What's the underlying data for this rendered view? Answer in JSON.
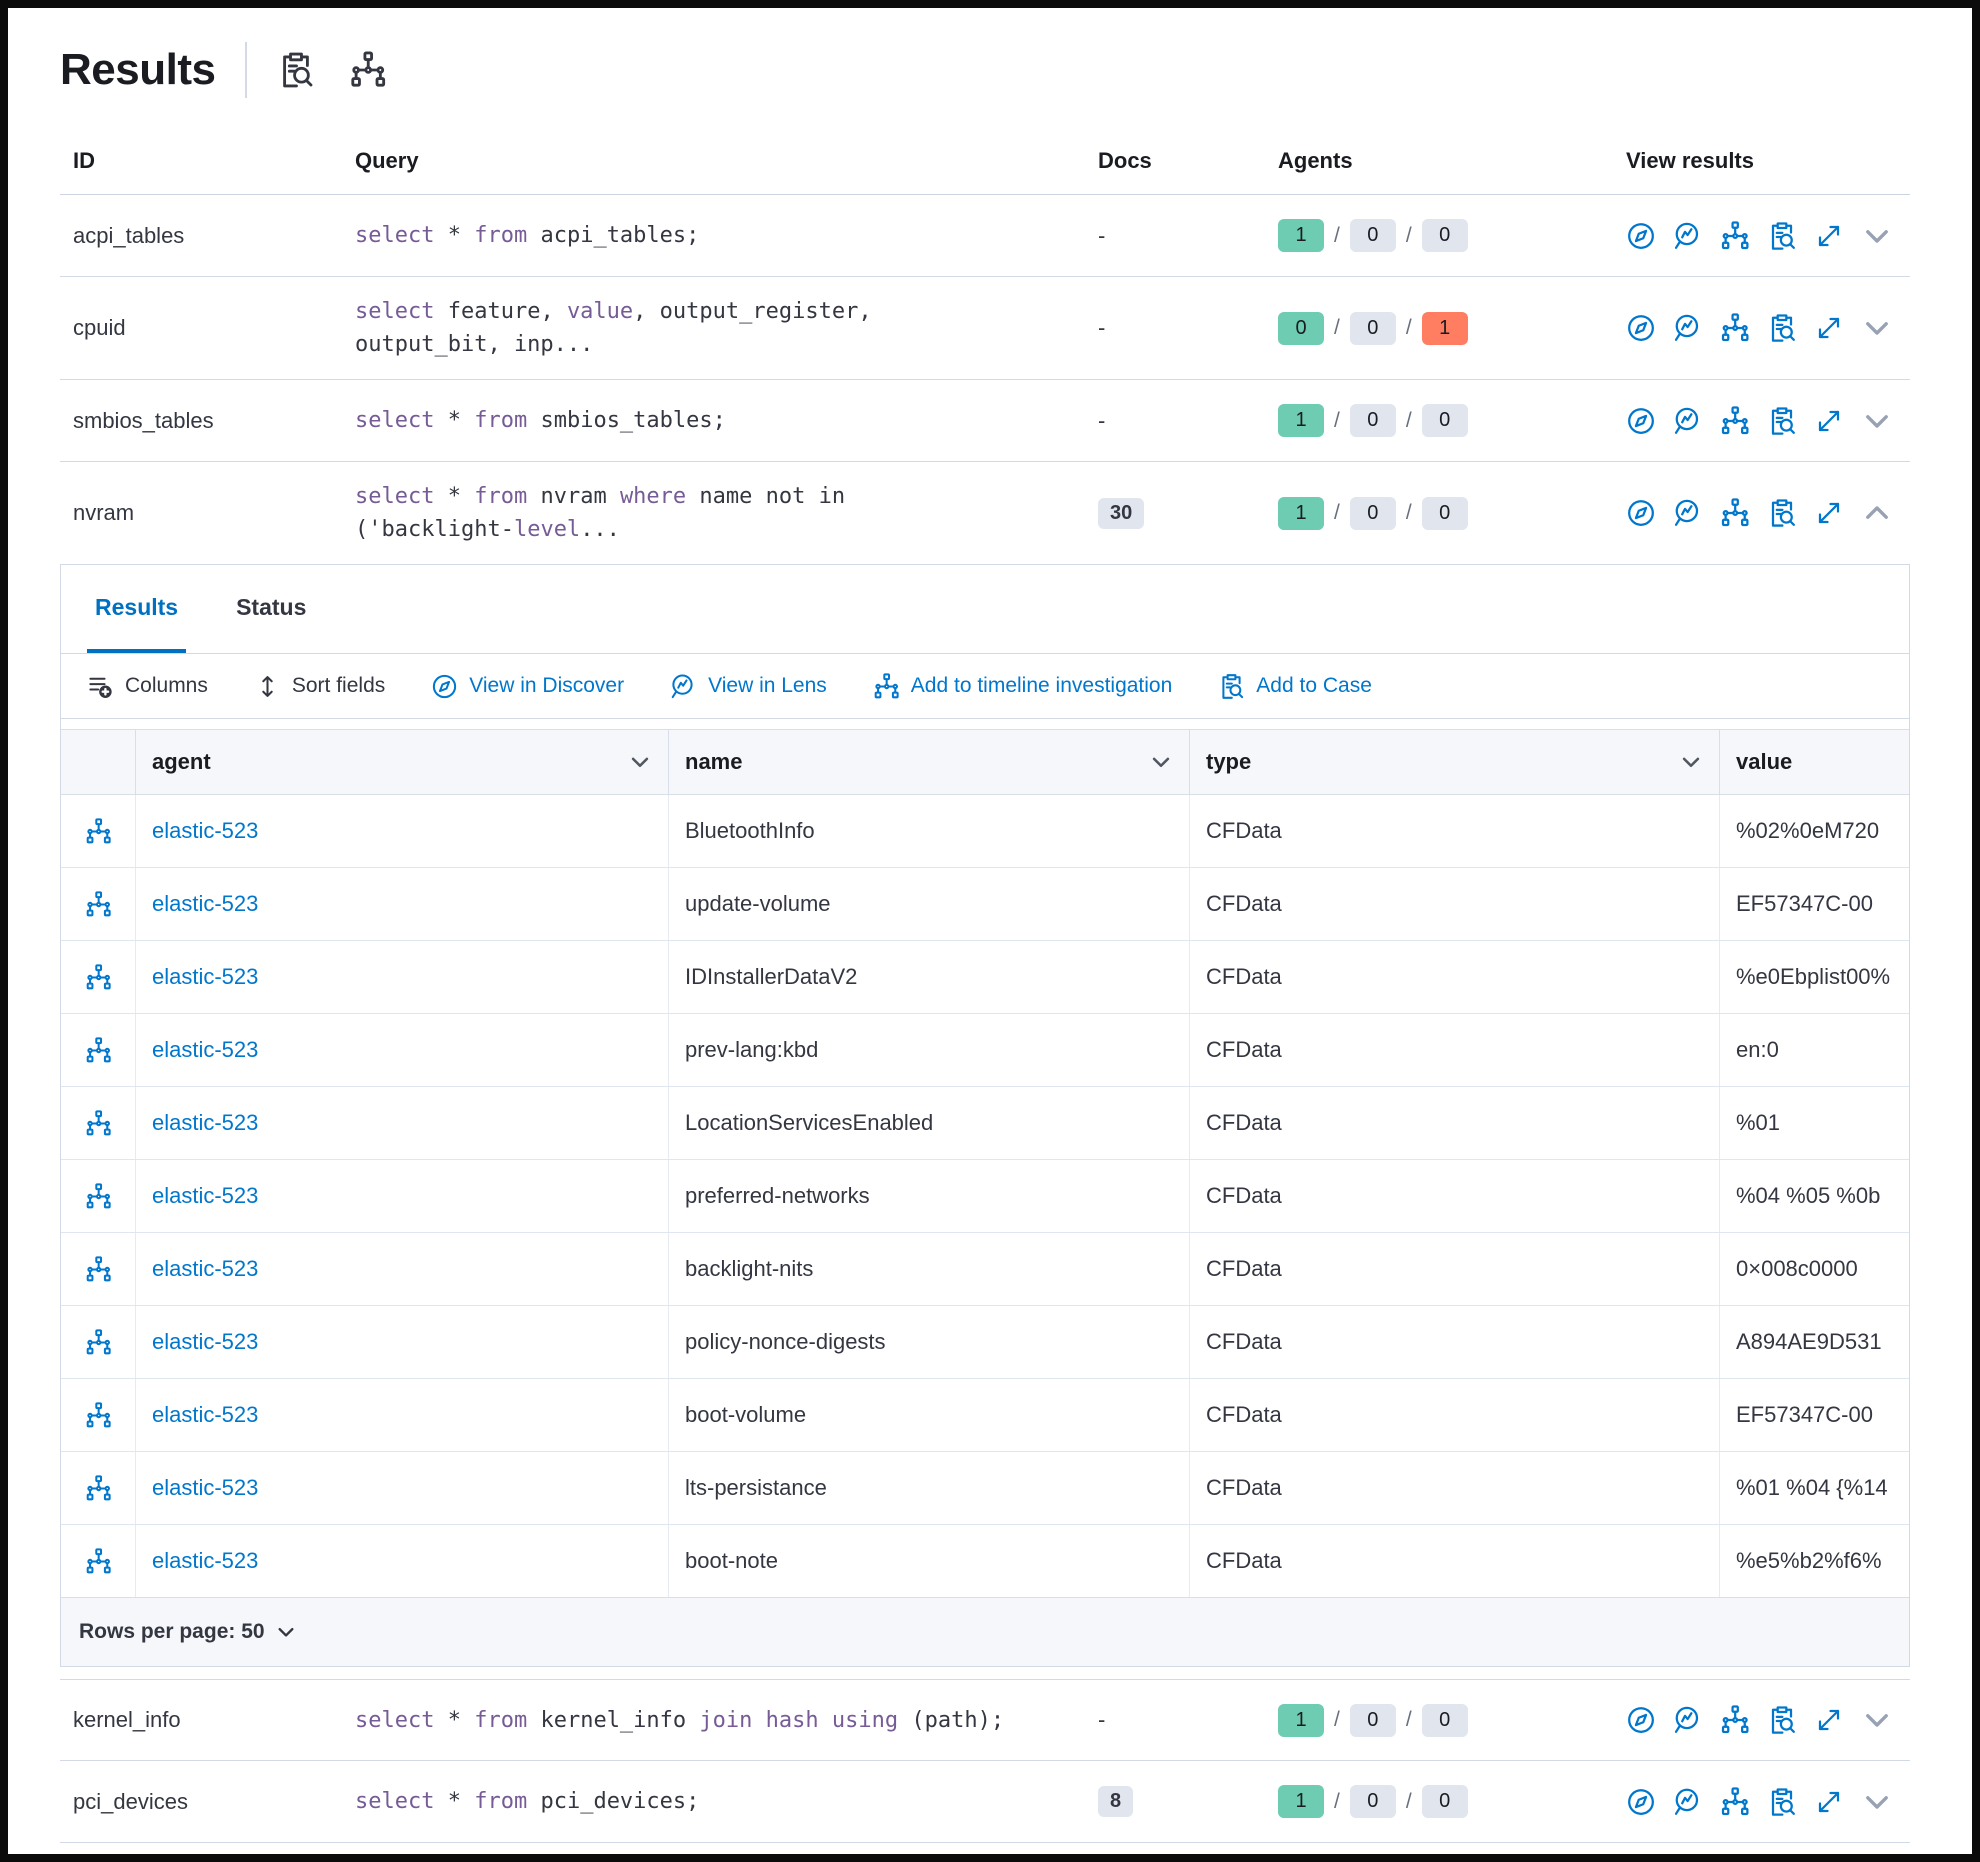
{
  "page": {
    "title": "Results"
  },
  "header": {
    "icons": [
      "inspect-icon",
      "timeline-icon"
    ]
  },
  "colors": {
    "accent_blue": "#0077CC",
    "active_tab_blue": "#0071C2",
    "keyword_purple": "#765B96",
    "success_green": "#6DCCB1",
    "danger_red": "#FF7E62",
    "neutral_badge_gray": "#E0E5EE"
  },
  "results_table": {
    "columns": [
      "ID",
      "Query",
      "Docs",
      "Agents",
      "View results"
    ],
    "rows": [
      {
        "id": "acpi_tables",
        "query_lines": [
          [
            [
              "select",
              1
            ],
            [
              " * ",
              0
            ],
            [
              "from",
              1
            ],
            [
              " acpi_tables;",
              0
            ]
          ]
        ],
        "docs": "-",
        "docs_is_badge": false,
        "agents": [
          [
            "1",
            "s"
          ],
          [
            "0",
            "n"
          ],
          [
            "0",
            "n"
          ]
        ],
        "expanded": false
      },
      {
        "id": "cpuid",
        "query_lines": [
          [
            [
              "select",
              1
            ],
            [
              " feature, ",
              0
            ],
            [
              "value",
              1
            ],
            [
              ", output_register,",
              0
            ]
          ],
          [
            [
              "output_bit, inp...",
              0
            ]
          ]
        ],
        "docs": "-",
        "docs_is_badge": false,
        "agents": [
          [
            "0",
            "s"
          ],
          [
            "0",
            "n"
          ],
          [
            "1",
            "d"
          ]
        ],
        "expanded": false
      },
      {
        "id": "smbios_tables",
        "query_lines": [
          [
            [
              "select",
              1
            ],
            [
              " * ",
              0
            ],
            [
              "from",
              1
            ],
            [
              " smbios_tables;",
              0
            ]
          ]
        ],
        "docs": "-",
        "docs_is_badge": false,
        "agents": [
          [
            "1",
            "s"
          ],
          [
            "0",
            "n"
          ],
          [
            "0",
            "n"
          ]
        ],
        "expanded": false
      },
      {
        "id": "nvram",
        "query_lines": [
          [
            [
              "select",
              1
            ],
            [
              " * ",
              0
            ],
            [
              "from",
              1
            ],
            [
              " nvram ",
              0
            ],
            [
              "where",
              1
            ],
            [
              " name not in",
              0
            ]
          ],
          [
            [
              "('backlight-",
              0
            ],
            [
              "level",
              1
            ],
            [
              "...",
              0
            ]
          ]
        ],
        "docs": "30",
        "docs_is_badge": true,
        "agents": [
          [
            "1",
            "s"
          ],
          [
            "0",
            "n"
          ],
          [
            "0",
            "n"
          ]
        ],
        "expanded": true
      },
      {
        "id": "kernel_info",
        "query_lines": [
          [
            [
              "select",
              1
            ],
            [
              " * ",
              0
            ],
            [
              "from",
              1
            ],
            [
              " kernel_info ",
              0
            ],
            [
              "join",
              1
            ],
            [
              " ",
              0
            ],
            [
              "hash",
              1
            ],
            [
              " ",
              0
            ],
            [
              "using",
              1
            ],
            [
              " (path);",
              0
            ]
          ]
        ],
        "docs": "-",
        "docs_is_badge": false,
        "agents": [
          [
            "1",
            "s"
          ],
          [
            "0",
            "n"
          ],
          [
            "0",
            "n"
          ]
        ],
        "expanded": false
      },
      {
        "id": "pci_devices",
        "query_lines": [
          [
            [
              "select",
              1
            ],
            [
              " * ",
              0
            ],
            [
              "from",
              1
            ],
            [
              " pci_devices;",
              0
            ]
          ]
        ],
        "docs": "8",
        "docs_is_badge": true,
        "agents": [
          [
            "1",
            "s"
          ],
          [
            "0",
            "n"
          ],
          [
            "0",
            "n"
          ]
        ],
        "expanded": false
      }
    ]
  },
  "panel": {
    "tabs": [
      {
        "label": "Results",
        "active": true
      },
      {
        "label": "Status",
        "active": false
      }
    ],
    "toolbar": [
      {
        "label": "Columns",
        "icon": "columns-icon",
        "blue": false
      },
      {
        "label": "Sort fields",
        "icon": "sort-icon",
        "blue": false
      },
      {
        "label": "View in Discover",
        "icon": "discover-icon",
        "blue": true
      },
      {
        "label": "View in Lens",
        "icon": "lens-icon",
        "blue": true
      },
      {
        "label": "Add to timeline investigation",
        "icon": "timeline-icon",
        "blue": true
      },
      {
        "label": "Add to Case",
        "icon": "case-icon",
        "blue": true
      }
    ],
    "grid": {
      "columns": [
        "agent",
        "name",
        "type",
        "value"
      ],
      "rows": [
        {
          "agent": "elastic-523",
          "name": "BluetoothInfo",
          "type": "CFData",
          "value": "%02%0eM720"
        },
        {
          "agent": "elastic-523",
          "name": "update-volume",
          "type": "CFData",
          "value": "EF57347C-00"
        },
        {
          "agent": "elastic-523",
          "name": "IDInstallerDataV2",
          "type": "CFData",
          "value": "%e0Ebplist00%"
        },
        {
          "agent": "elastic-523",
          "name": "prev-lang:kbd",
          "type": "CFData",
          "value": "en:0"
        },
        {
          "agent": "elastic-523",
          "name": "LocationServicesEnabled",
          "type": "CFData",
          "value": "%01"
        },
        {
          "agent": "elastic-523",
          "name": "preferred-networks",
          "type": "CFData",
          "value": "%04 %05 %0b"
        },
        {
          "agent": "elastic-523",
          "name": "backlight-nits",
          "type": "CFData",
          "value": "0×008c0000"
        },
        {
          "agent": "elastic-523",
          "name": "policy-nonce-digests",
          "type": "CFData",
          "value": "A894AE9D531"
        },
        {
          "agent": "elastic-523",
          "name": "boot-volume",
          "type": "CFData",
          "value": "EF57347C-00"
        },
        {
          "agent": "elastic-523",
          "name": "lts-persistance",
          "type": "CFData",
          "value": "%01 %04 {%14"
        },
        {
          "agent": "elastic-523",
          "name": "boot-note",
          "type": "CFData",
          "value": "%e5%b2%f6%"
        }
      ]
    },
    "footer": {
      "rows_per_page_label": "Rows per page: 50"
    }
  }
}
